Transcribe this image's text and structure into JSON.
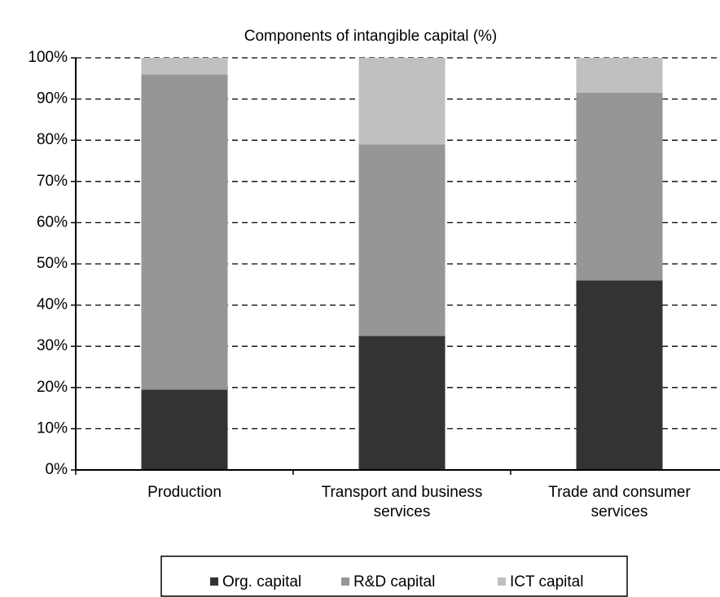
{
  "chart_data": {
    "type": "stacked_bar",
    "title": "Components of intangible capital (%)",
    "categories": [
      "Production",
      "Transport and business services",
      "Trade and consumer services"
    ],
    "series": [
      {
        "name": "Org. capital",
        "color": "#333333",
        "values": [
          19.5,
          32.5,
          46
        ]
      },
      {
        "name": "R&D capital",
        "color": "#969696",
        "values": [
          76.5,
          46.5,
          45.5
        ]
      },
      {
        "name": "ICT capital",
        "color": "#c0c0c0",
        "values": [
          4,
          21,
          8.5
        ]
      }
    ],
    "ylim": [
      0,
      100
    ],
    "yticks": [
      {
        "value": 0,
        "label": "0%"
      },
      {
        "value": 10,
        "label": "10%"
      },
      {
        "value": 20,
        "label": "20%"
      },
      {
        "value": 30,
        "label": "30%"
      },
      {
        "value": 40,
        "label": "40%"
      },
      {
        "value": 50,
        "label": "50%"
      },
      {
        "value": 60,
        "label": "60%"
      },
      {
        "value": 70,
        "label": "70%"
      },
      {
        "value": 80,
        "label": "80%"
      },
      {
        "value": 90,
        "label": "90%"
      },
      {
        "value": 100,
        "label": "100%"
      }
    ],
    "grid": true,
    "legend": "bottom"
  }
}
